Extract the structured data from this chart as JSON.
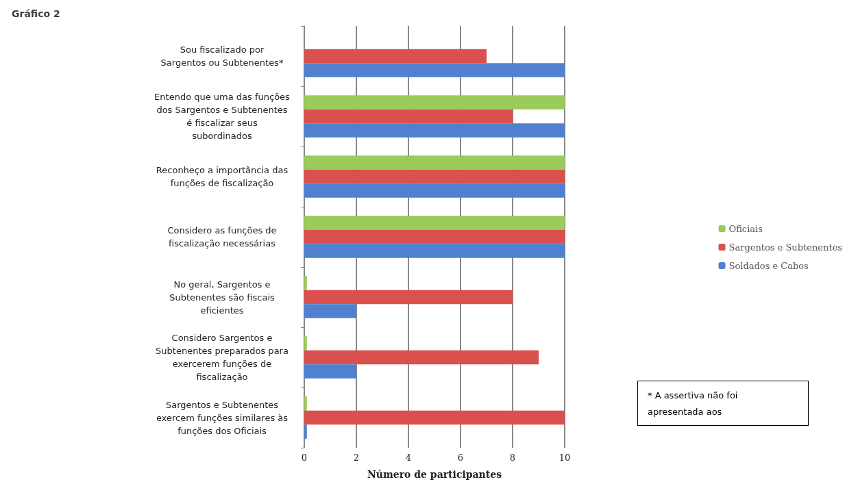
{
  "chart_data": {
    "type": "bar",
    "orientation": "horizontal",
    "title": "Gráfico 2",
    "xlabel": "Número de participantes",
    "categories": [
      "Sou fiscalizado por Sargentos ou Subtenentes*",
      "Entendo que uma das funções dos Sargentos e Subtenentes é fiscalizar seus subordinados",
      "Reconheço a importância das funções de fiscalização",
      "Considero as funções de fiscalização necessárias",
      "No geral, Sargentos e Subtenentes são fiscais eficientes",
      "Considero Sargentos e Subtenentes preparados para exercerem funções de fiscalização",
      "Sargentos e Subtenentes exercem funções similares às funções dos Oficiais"
    ],
    "series": [
      {
        "name": "Oficiais",
        "color": "#9bcb5a",
        "values": [
          null,
          10,
          10,
          10,
          0.1,
          0.1,
          0.1
        ]
      },
      {
        "name": "Sargentos e Subtenentes",
        "color": "#d9504f",
        "values": [
          7,
          8,
          10,
          10,
          8,
          9,
          10
        ]
      },
      {
        "name": "Soldados e Cabos",
        "color": "#4f81d0",
        "values": [
          10,
          10,
          10,
          10,
          2,
          2,
          0.1
        ]
      }
    ],
    "xlim": [
      0,
      10
    ],
    "xticks": [
      0,
      2,
      4,
      6,
      8,
      10
    ],
    "grid": "x",
    "legend": "right",
    "annotations": [
      "* A assertiva não foi apresentada aos"
    ]
  }
}
